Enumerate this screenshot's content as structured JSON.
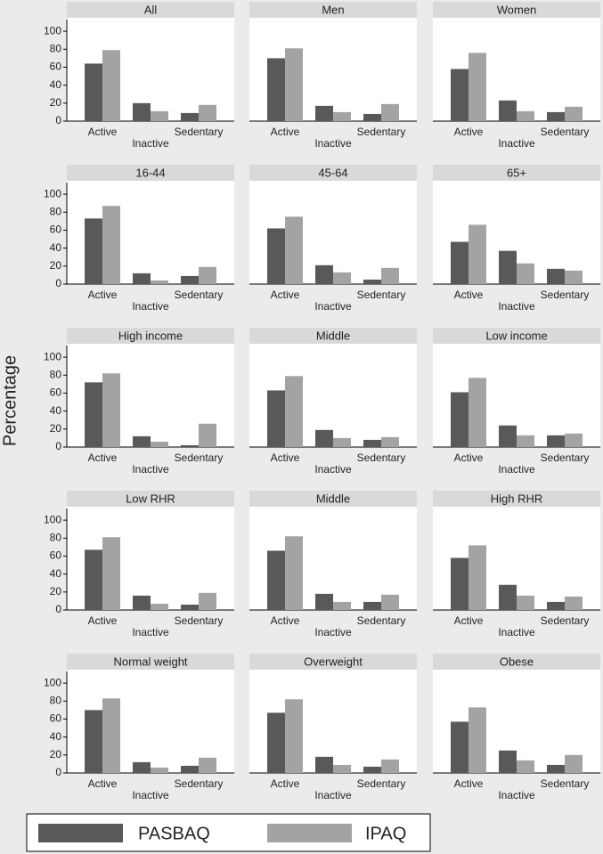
{
  "y_label": "Percentage",
  "chart_data": [
    {
      "type": "bar",
      "title": "All",
      "categories": [
        "Active",
        "Inactive",
        "Sedentary"
      ],
      "series": [
        {
          "name": "PASBAQ",
          "color": "#595959",
          "values": [
            64,
            20,
            9
          ]
        },
        {
          "name": "IPAQ",
          "color": "#a3a3a3",
          "values": [
            79,
            11,
            18
          ]
        }
      ],
      "ylim": [
        0,
        113
      ],
      "yticks": [
        0,
        20,
        40,
        60,
        80,
        100
      ]
    },
    {
      "type": "bar",
      "title": "Men",
      "categories": [
        "Active",
        "Inactive",
        "Sedentary"
      ],
      "series": [
        {
          "color": "#595959",
          "values": [
            70,
            17,
            8
          ]
        },
        {
          "color": "#a3a3a3",
          "values": [
            81,
            10,
            19
          ]
        }
      ],
      "ylim": [
        0,
        113
      ]
    },
    {
      "type": "bar",
      "title": "Women",
      "categories": [
        "Active",
        "Inactive",
        "Sedentary"
      ],
      "series": [
        {
          "color": "#595959",
          "values": [
            58,
            23,
            10
          ]
        },
        {
          "color": "#a3a3a3",
          "values": [
            76,
            11,
            16
          ]
        }
      ],
      "ylim": [
        0,
        113
      ]
    },
    {
      "type": "bar",
      "title": "16-44",
      "categories": [
        "Active",
        "Inactive",
        "Sedentary"
      ],
      "series": [
        {
          "color": "#595959",
          "values": [
            73,
            12,
            9
          ]
        },
        {
          "color": "#a3a3a3",
          "values": [
            87,
            4,
            19
          ]
        }
      ],
      "ylim": [
        0,
        113
      ],
      "yticks": [
        0,
        20,
        40,
        60,
        80,
        100
      ]
    },
    {
      "type": "bar",
      "title": "45-64",
      "categories": [
        "Active",
        "Inactive",
        "Sedentary"
      ],
      "series": [
        {
          "color": "#595959",
          "values": [
            62,
            21,
            5
          ]
        },
        {
          "color": "#a3a3a3",
          "values": [
            75,
            13,
            18
          ]
        }
      ],
      "ylim": [
        0,
        113
      ]
    },
    {
      "type": "bar",
      "title": "65+",
      "categories": [
        "Active",
        "Inactive",
        "Sedentary"
      ],
      "series": [
        {
          "color": "#595959",
          "values": [
            47,
            37,
            17
          ]
        },
        {
          "color": "#a3a3a3",
          "values": [
            66,
            23,
            15
          ]
        }
      ],
      "ylim": [
        0,
        113
      ]
    },
    {
      "type": "bar",
      "title": "High income",
      "categories": [
        "Active",
        "Inactive",
        "Sedentary"
      ],
      "series": [
        {
          "color": "#595959",
          "values": [
            72,
            12,
            2
          ]
        },
        {
          "color": "#a3a3a3",
          "values": [
            82,
            6,
            26
          ]
        }
      ],
      "ylim": [
        0,
        113
      ],
      "yticks": [
        0,
        20,
        40,
        60,
        80,
        100
      ]
    },
    {
      "type": "bar",
      "title": "Middle",
      "categories": [
        "Active",
        "Inactive",
        "Sedentary"
      ],
      "series": [
        {
          "color": "#595959",
          "values": [
            63,
            19,
            8
          ]
        },
        {
          "color": "#a3a3a3",
          "values": [
            79,
            10,
            11
          ]
        }
      ],
      "ylim": [
        0,
        113
      ]
    },
    {
      "type": "bar",
      "title": "Low income",
      "categories": [
        "Active",
        "Inactive",
        "Sedentary"
      ],
      "series": [
        {
          "color": "#595959",
          "values": [
            61,
            24,
            13
          ]
        },
        {
          "color": "#a3a3a3",
          "values": [
            77,
            13,
            15
          ]
        }
      ],
      "ylim": [
        0,
        113
      ]
    },
    {
      "type": "bar",
      "title": "Low RHR",
      "categories": [
        "Active",
        "Inactive",
        "Sedentary"
      ],
      "series": [
        {
          "color": "#595959",
          "values": [
            67,
            16,
            6
          ]
        },
        {
          "color": "#a3a3a3",
          "values": [
            81,
            7,
            19
          ]
        }
      ],
      "ylim": [
        0,
        113
      ],
      "yticks": [
        0,
        20,
        40,
        60,
        80,
        100
      ]
    },
    {
      "type": "bar",
      "title": "Middle",
      "categories": [
        "Active",
        "Inactive",
        "Sedentary"
      ],
      "series": [
        {
          "color": "#595959",
          "values": [
            66,
            18,
            9
          ]
        },
        {
          "color": "#a3a3a3",
          "values": [
            82,
            9,
            17
          ]
        }
      ],
      "ylim": [
        0,
        113
      ]
    },
    {
      "type": "bar",
      "title": "High RHR",
      "categories": [
        "Active",
        "Inactive",
        "Sedentary"
      ],
      "series": [
        {
          "color": "#595959",
          "values": [
            58,
            28,
            9
          ]
        },
        {
          "color": "#a3a3a3",
          "values": [
            72,
            16,
            15
          ]
        }
      ],
      "ylim": [
        0,
        113
      ]
    },
    {
      "type": "bar",
      "title": "Normal weight",
      "categories": [
        "Active",
        "Inactive",
        "Sedentary"
      ],
      "series": [
        {
          "color": "#595959",
          "values": [
            70,
            12,
            8
          ]
        },
        {
          "color": "#a3a3a3",
          "values": [
            83,
            6,
            17
          ]
        }
      ],
      "ylim": [
        0,
        113
      ],
      "yticks": [
        0,
        20,
        40,
        60,
        80,
        100
      ]
    },
    {
      "type": "bar",
      "title": "Overweight",
      "categories": [
        "Active",
        "Inactive",
        "Sedentary"
      ],
      "series": [
        {
          "color": "#595959",
          "values": [
            67,
            18,
            7
          ]
        },
        {
          "color": "#a3a3a3",
          "values": [
            82,
            9,
            15
          ]
        }
      ],
      "ylim": [
        0,
        113
      ]
    },
    {
      "type": "bar",
      "title": "Obese",
      "categories": [
        "Active",
        "Inactive",
        "Sedentary"
      ],
      "series": [
        {
          "color": "#595959",
          "values": [
            57,
            25,
            9
          ]
        },
        {
          "color": "#a3a3a3",
          "values": [
            73,
            14,
            20
          ]
        }
      ],
      "ylim": [
        0,
        113
      ]
    }
  ]
}
